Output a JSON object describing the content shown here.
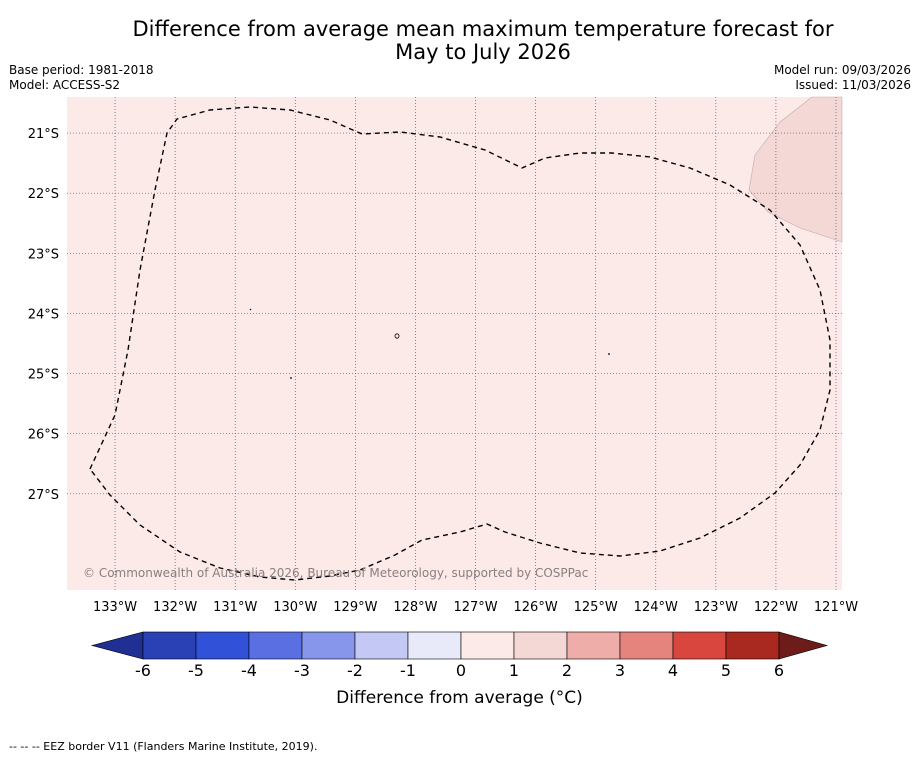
{
  "title_line1": "Difference from average mean maximum temperature forecast for",
  "title_line2": "May to July 2026",
  "base_period": "Base period: 1981-2018",
  "model": "Model: ACCESS-S2",
  "model_run": "Model run: 09/03/2026",
  "issued": "Issued: 11/03/2026",
  "copyright": "© Commonwealth of Australia 2026, Bureau of Meteorology, supported by COSPPac",
  "map": {
    "lon_range": [
      -133.8,
      -120.9
    ],
    "lat_range": [
      -28.6,
      -20.4
    ],
    "lon_ticks": [
      -133,
      -132,
      -131,
      -130,
      -129,
      -128,
      -127,
      -126,
      -125,
      -124,
      -123,
      -122,
      -121
    ],
    "lon_labels": [
      "133°W",
      "132°W",
      "131°W",
      "130°W",
      "129°W",
      "128°W",
      "127°W",
      "126°W",
      "125°W",
      "124°W",
      "123°W",
      "122°W",
      "121°W"
    ],
    "lat_ticks": [
      -21,
      -22,
      -23,
      -24,
      -25,
      -26,
      -27
    ],
    "lat_labels": [
      "21°S",
      "22°S",
      "23°S",
      "24°S",
      "25°S",
      "26°S",
      "27°S"
    ],
    "base_fill_color": "#fbeae8",
    "warm_patch_color": "#f3d8d6",
    "grid_color": "#555577"
  },
  "colorbar": {
    "ticks": [
      "-6",
      "-5",
      "-4",
      "-3",
      "-2",
      "-1",
      "0",
      "1",
      "2",
      "3",
      "4",
      "5",
      "6"
    ],
    "colors": [
      "#1f2f93",
      "#2a40b5",
      "#3151d9",
      "#5a6fe1",
      "#8796eb",
      "#c3c8f4",
      "#e8eafa",
      "#fbeae8",
      "#f3d8d6",
      "#eeada8",
      "#e5847d",
      "#d8463e",
      "#a92820",
      "#6e1c19"
    ],
    "label": "Difference from average (°C)"
  },
  "footer": "--  --  -- EEZ border V11 (Flanders Marine Institute, 2019)."
}
